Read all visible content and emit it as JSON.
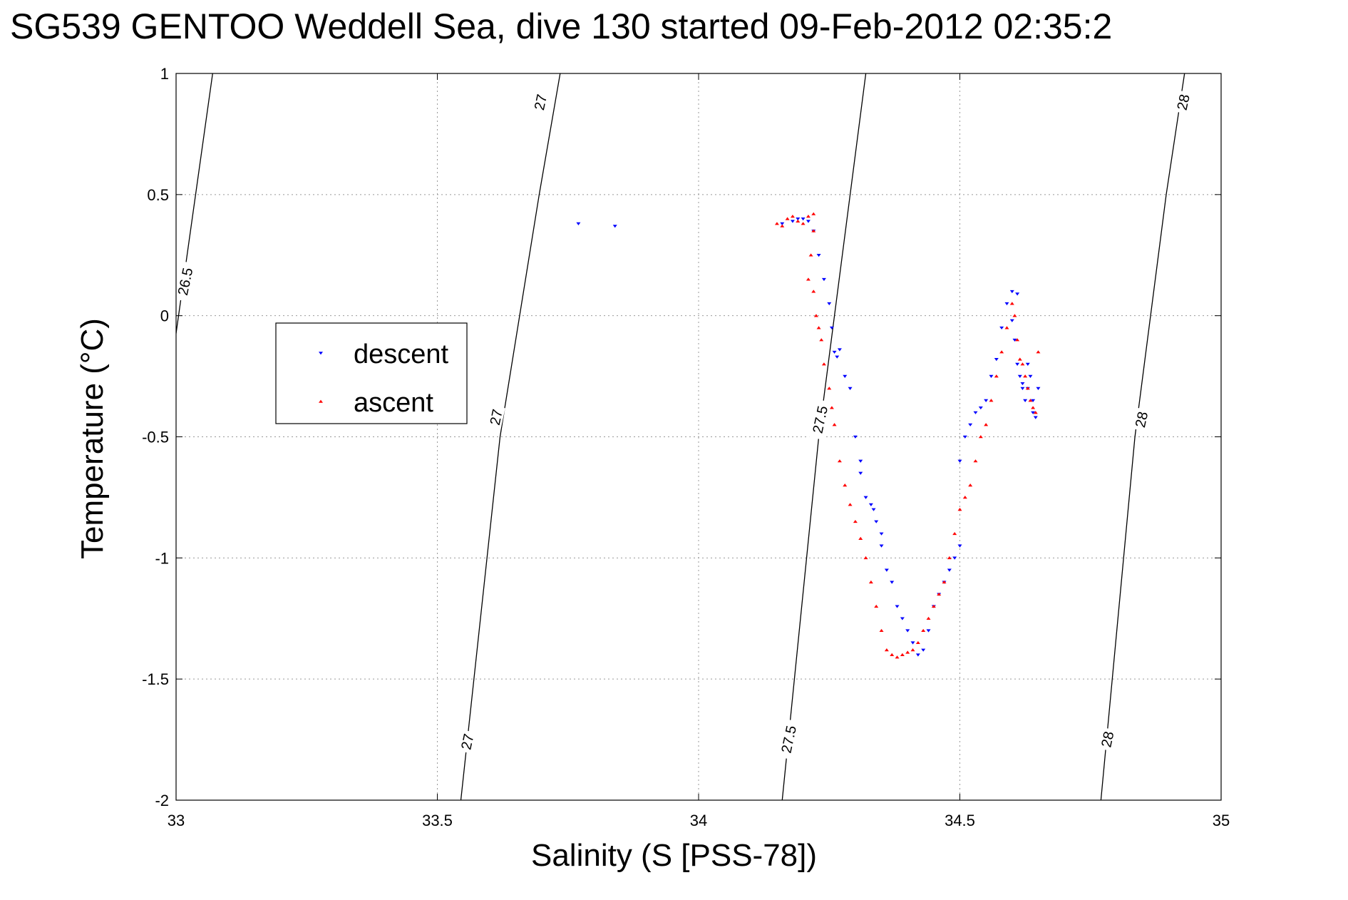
{
  "chart_data": {
    "type": "scatter",
    "title": "SG539 GENTOO Weddell Sea, dive 130 started 09-Feb-2012 02:35:2",
    "xlabel": "Salinity (S [PSS-78])",
    "ylabel": "Temperature (°C)",
    "xlim": [
      33,
      35
    ],
    "ylim": [
      -2,
      1
    ],
    "xticks": [
      "33",
      "33.5",
      "34",
      "34.5",
      "35"
    ],
    "yticks": [
      "1",
      "0.5",
      "0",
      "-0.5",
      "-1",
      "-1.5",
      "-2"
    ],
    "grid": true,
    "legend": {
      "placement": "center-left",
      "entries": [
        "descent",
        "ascent"
      ]
    },
    "colors": {
      "descent": "#0000ff",
      "ascent": "#ff0000",
      "contour": "#000000"
    },
    "isopycnals": [
      {
        "label": "26.5",
        "points": [
          [
            32.995,
            -0.15
          ],
          [
            33.07,
            1.0
          ]
        ]
      },
      {
        "label": "27",
        "points": [
          [
            33.545,
            -2.0
          ],
          [
            33.62,
            -0.5
          ],
          [
            33.695,
            0.5
          ],
          [
            33.735,
            1.0
          ]
        ]
      },
      {
        "label": "27.5",
        "points": [
          [
            34.16,
            -2.0
          ],
          [
            34.23,
            -0.5
          ],
          [
            34.29,
            0.5
          ],
          [
            34.32,
            1.0
          ]
        ]
      },
      {
        "label": "28",
        "points": [
          [
            34.77,
            -2.0
          ],
          [
            34.835,
            -0.5
          ],
          [
            34.895,
            0.5
          ],
          [
            34.93,
            1.0
          ]
        ]
      }
    ],
    "contour_labels": [
      {
        "text": "26.5",
        "x": 33.02,
        "y": 0.14
      },
      {
        "text": "27",
        "x": 33.7,
        "y": 0.88
      },
      {
        "text": "27",
        "x": 33.615,
        "y": -0.42
      },
      {
        "text": "27",
        "x": 33.56,
        "y": -1.76
      },
      {
        "text": "27.5",
        "x": 34.235,
        "y": -0.43
      },
      {
        "text": "27.5",
        "x": 34.175,
        "y": -1.75
      },
      {
        "text": "28",
        "x": 34.93,
        "y": 0.88
      },
      {
        "text": "28",
        "x": 34.85,
        "y": -0.43
      },
      {
        "text": "28",
        "x": 34.785,
        "y": -1.75
      }
    ],
    "series": [
      {
        "name": "descent",
        "marker": "triangle-down",
        "x": [
          33.77,
          33.84,
          34.16,
          34.18,
          34.19,
          34.2,
          34.21,
          34.22,
          34.23,
          34.24,
          34.25,
          34.255,
          34.26,
          34.265,
          34.27,
          34.28,
          34.29,
          34.3,
          34.31,
          34.31,
          34.32,
          34.33,
          34.335,
          34.34,
          34.35,
          34.35,
          34.36,
          34.37,
          34.38,
          34.39,
          34.4,
          34.41,
          34.42,
          34.43,
          34.44,
          34.45,
          34.46,
          34.47,
          34.48,
          34.49,
          34.5,
          34.5,
          34.51,
          34.52,
          34.53,
          34.54,
          34.55,
          34.56,
          34.57,
          34.58,
          34.59,
          34.6,
          34.6,
          34.605,
          34.61,
          34.615,
          34.62,
          34.62,
          34.625,
          34.63,
          34.63,
          34.635,
          34.64,
          34.64,
          34.645,
          34.65,
          34.61
        ],
        "y": [
          0.38,
          0.37,
          0.38,
          0.39,
          0.4,
          0.4,
          0.39,
          0.35,
          0.25,
          0.15,
          0.05,
          -0.05,
          -0.15,
          -0.17,
          -0.14,
          -0.25,
          -0.3,
          -0.5,
          -0.6,
          -0.65,
          -0.75,
          -0.78,
          -0.8,
          -0.85,
          -0.9,
          -0.95,
          -1.05,
          -1.1,
          -1.2,
          -1.25,
          -1.3,
          -1.35,
          -1.4,
          -1.38,
          -1.3,
          -1.2,
          -1.15,
          -1.1,
          -1.05,
          -1.0,
          -0.95,
          -0.6,
          -0.5,
          -0.45,
          -0.4,
          -0.38,
          -0.35,
          -0.25,
          -0.18,
          -0.05,
          0.05,
          0.1,
          -0.02,
          -0.1,
          -0.2,
          -0.25,
          -0.28,
          -0.3,
          -0.35,
          -0.3,
          -0.2,
          -0.25,
          -0.35,
          -0.4,
          -0.42,
          -0.3,
          0.09
        ]
      },
      {
        "name": "ascent",
        "marker": "triangle-up",
        "x": [
          34.15,
          34.16,
          34.17,
          34.18,
          34.19,
          34.2,
          34.21,
          34.22,
          34.22,
          34.215,
          34.21,
          34.22,
          34.225,
          34.23,
          34.235,
          34.24,
          34.25,
          34.255,
          34.26,
          34.27,
          34.28,
          34.29,
          34.3,
          34.31,
          34.32,
          34.33,
          34.34,
          34.35,
          34.36,
          34.37,
          34.38,
          34.39,
          34.4,
          34.41,
          34.42,
          34.43,
          34.44,
          34.45,
          34.46,
          34.47,
          34.48,
          34.49,
          34.5,
          34.51,
          34.52,
          34.53,
          34.54,
          34.55,
          34.56,
          34.57,
          34.58,
          34.59,
          34.6,
          34.605,
          34.61,
          34.615,
          34.62,
          34.625,
          34.63,
          34.635,
          34.64,
          34.645,
          34.65
        ],
        "y": [
          0.38,
          0.37,
          0.4,
          0.41,
          0.39,
          0.38,
          0.41,
          0.42,
          0.35,
          0.25,
          0.15,
          0.1,
          0.0,
          -0.05,
          -0.1,
          -0.2,
          -0.3,
          -0.38,
          -0.45,
          -0.6,
          -0.7,
          -0.78,
          -0.85,
          -0.92,
          -1.0,
          -1.1,
          -1.2,
          -1.3,
          -1.38,
          -1.4,
          -1.41,
          -1.4,
          -1.39,
          -1.38,
          -1.35,
          -1.3,
          -1.25,
          -1.2,
          -1.15,
          -1.1,
          -1.0,
          -0.9,
          -0.8,
          -0.75,
          -0.7,
          -0.6,
          -0.5,
          -0.45,
          -0.35,
          -0.25,
          -0.15,
          -0.05,
          0.05,
          0.0,
          -0.1,
          -0.18,
          -0.2,
          -0.25,
          -0.3,
          -0.35,
          -0.38,
          -0.4,
          -0.15
        ]
      }
    ]
  }
}
